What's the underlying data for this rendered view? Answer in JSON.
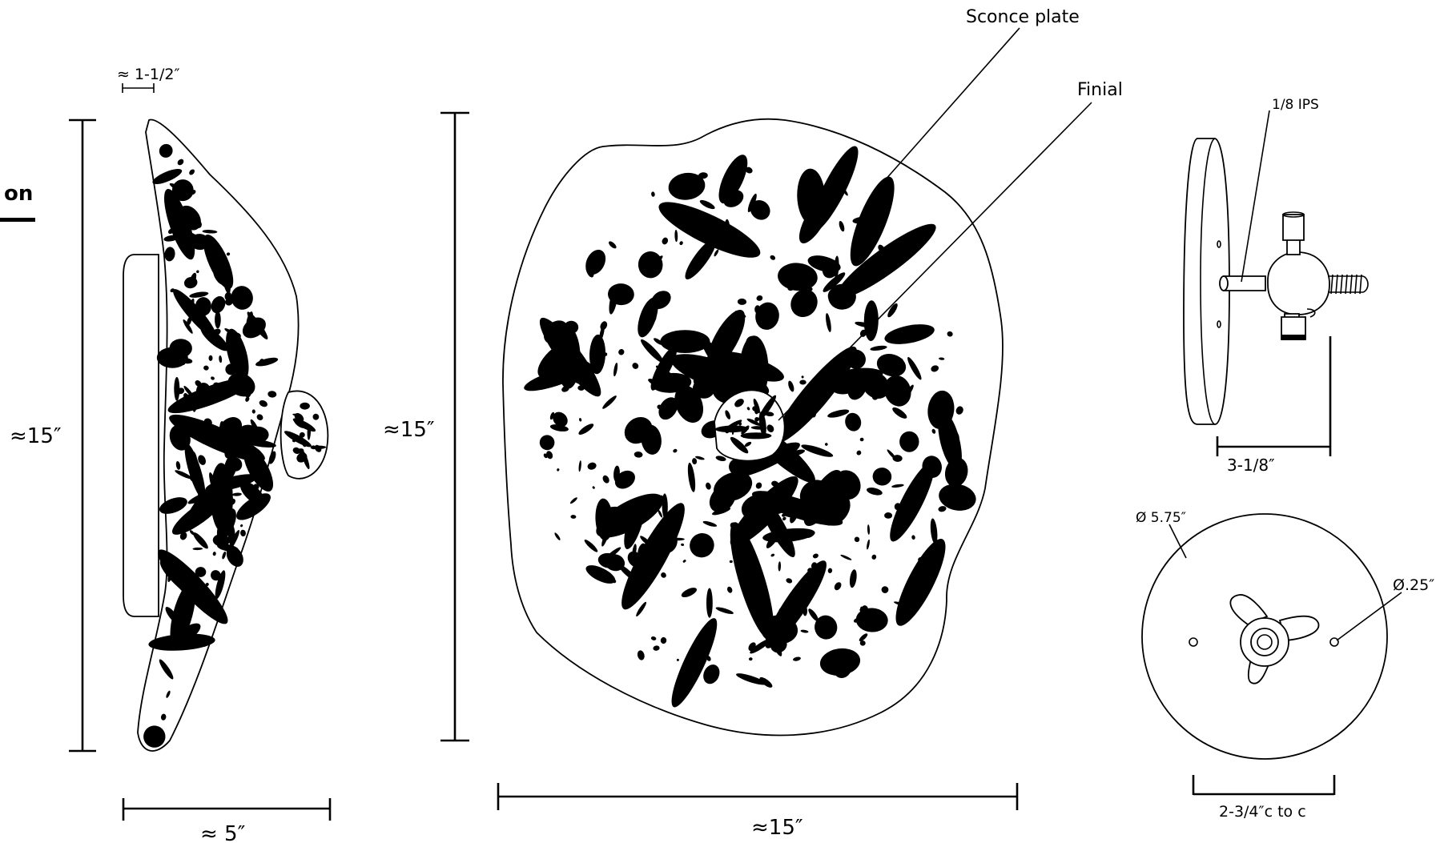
{
  "colors": {
    "ink": "#000000",
    "paper": "#ffffff"
  },
  "side_view": {
    "heading_fragment": "on",
    "depth_label": "≈ 1-1/2″",
    "height_label": "≈15″",
    "width_label": "≈ 5″"
  },
  "front_view": {
    "sconce_plate_label": "Sconce plate",
    "finial_label": "Finial",
    "height_label": "≈15″",
    "width_label": "≈15″"
  },
  "mount_side": {
    "thread_label": "1/8 IPS",
    "depth_label": "3-1/8″"
  },
  "mount_front": {
    "plate_diameter_label": "Ø 5.75″",
    "hole_diameter_label": "Ø.25″",
    "spacing_label": "2-3/4″c to c"
  }
}
